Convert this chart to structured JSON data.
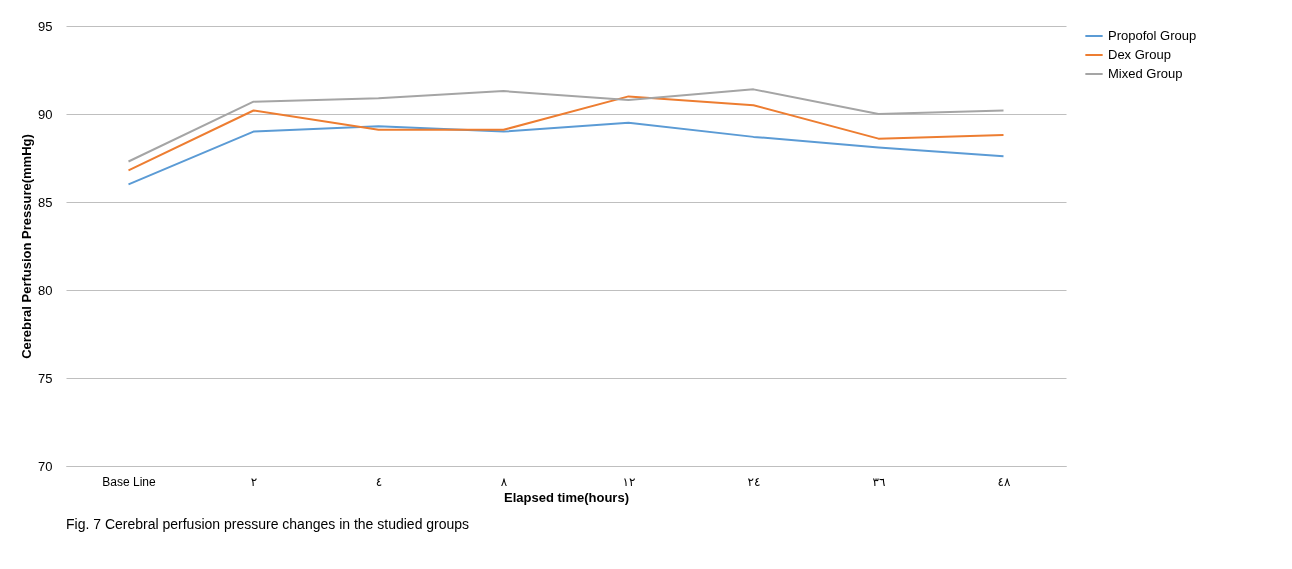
{
  "chart_data": {
    "type": "line",
    "xlabel": "Elapsed time(hours)",
    "ylabel": "Cerebral Perfusion Pressure(mmHg)",
    "categories": [
      "Base Line",
      "٢",
      "٤",
      "٨",
      "١٢",
      "٢٤",
      "٣٦",
      "٤٨"
    ],
    "series": [
      {
        "name": "Propofol Group",
        "color": "#5b9bd5",
        "values": [
          86.0,
          89.0,
          89.3,
          89.0,
          89.5,
          88.7,
          88.1,
          87.6
        ]
      },
      {
        "name": "Dex Group",
        "color": "#ed7d31",
        "values": [
          86.8,
          90.2,
          89.1,
          89.1,
          91.0,
          90.5,
          88.6,
          88.8
        ]
      },
      {
        "name": "Mixed Group",
        "color": "#a5a5a5",
        "values": [
          87.3,
          90.7,
          90.9,
          91.3,
          90.8,
          91.4,
          90.0,
          90.2
        ]
      }
    ],
    "ylim": [
      70,
      95
    ],
    "yticks": [
      70,
      75,
      80,
      85,
      90,
      95
    ],
    "grid": "y",
    "legend": "right",
    "marker": "none",
    "line_style": "solid",
    "annotations": [
      "Fig. 7 Cerebral perfusion pressure changes in the studied groups"
    ]
  }
}
